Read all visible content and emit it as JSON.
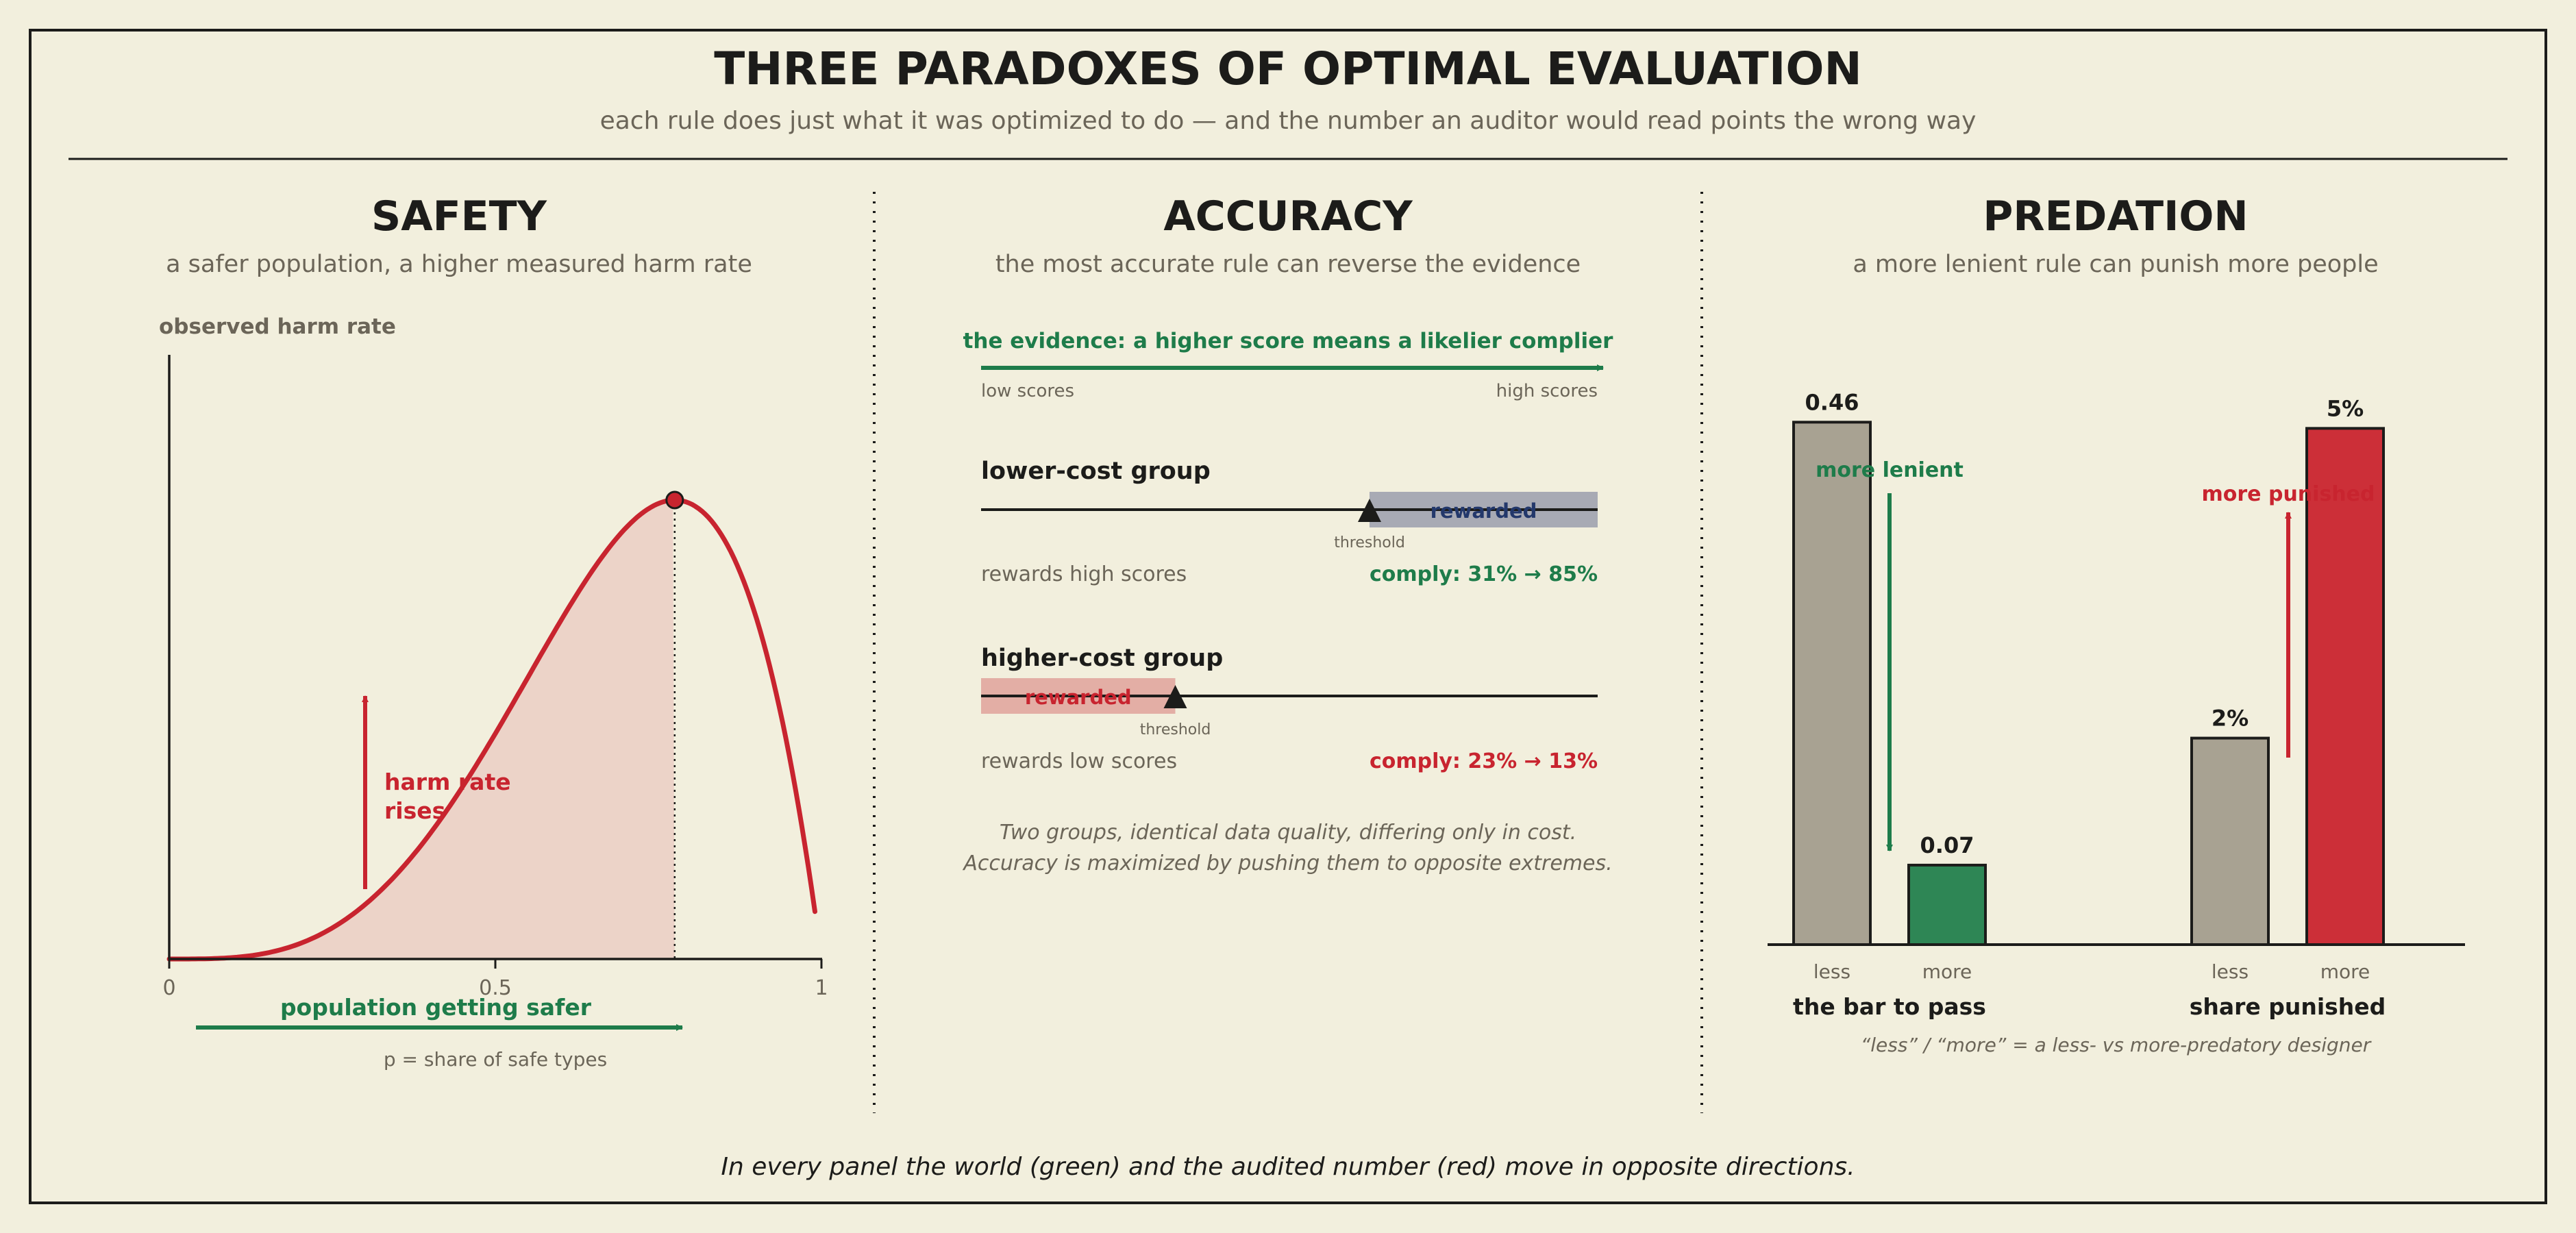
{
  "header": {
    "title": "THREE PARADOXES OF OPTIMAL EVALUATION",
    "subtitle": "each rule does just what it was optimized to do — and the number an auditor would read points the wrong way"
  },
  "colors": {
    "background": "#f2efdd",
    "ink": "#1c1c1a",
    "muted": "#6b6558",
    "green": "#1e7c4a",
    "red": "#c8242f",
    "navy": "#23386b",
    "gray_bar": "#a8a292"
  },
  "safety": {
    "title": "SAFETY",
    "subtitle": "a safer population, a higher measured harm rate",
    "y_label": "observed harm rate",
    "x_ticks": [
      "0",
      "0.5",
      "1"
    ],
    "rise_label_line1": "harm rate",
    "rise_label_line2": "rises",
    "safer_label": "population getting safer",
    "x_label": "p = share of safe types",
    "curve": {
      "x_min": 0,
      "x_max": 1,
      "peak_p": 0.775,
      "end_p": 0.99,
      "x_end_ratio": 0.18
    }
  },
  "accuracy": {
    "title": "ACCURACY",
    "subtitle": "the most accurate rule can reverse the evidence",
    "evidence_label": "the evidence: a higher score means a likelier complier",
    "low_scores": "low scores",
    "high_scores": "high scores",
    "lower_group": {
      "name": "lower-cost group",
      "band_label": "rewarded",
      "threshold_label": "threshold",
      "rule": "rewards high scores",
      "comply": "comply: 31% → 85%",
      "threshold_frac": 0.63
    },
    "higher_group": {
      "name": "higher-cost group",
      "band_label": "rewarded",
      "threshold_label": "threshold",
      "rule": "rewards low scores",
      "comply": "comply: 23% → 13%",
      "threshold_frac": 0.315
    },
    "note_line1": "Two groups, identical data quality, differing only in cost.",
    "note_line2": "Accuracy is maximized by pushing them to opposite extremes."
  },
  "predation": {
    "title": "PREDATION",
    "subtitle": "a more lenient rule can punish more people",
    "lenient_label": "more lenient",
    "punished_label": "more punished",
    "groups": [
      {
        "name": "the bar to pass",
        "ylim": [
          0,
          0.5
        ],
        "bars": [
          {
            "label": "less",
            "value": 0.46,
            "value_label": "0.46",
            "color": "#a8a292"
          },
          {
            "label": "more",
            "value": 0.07,
            "value_label": "0.07",
            "color": "#2e8655"
          }
        ]
      },
      {
        "name": "share punished",
        "ylim": [
          0,
          5.5
        ],
        "bars": [
          {
            "label": "less",
            "value": 2,
            "value_label": "2%",
            "color": "#a8a292"
          },
          {
            "label": "more",
            "value": 5,
            "value_label": "5%",
            "color": "#cc2f38"
          }
        ]
      }
    ],
    "footnote": "“less” / “more” = a less- vs more-predatory designer"
  },
  "footer": {
    "caption": "In every panel the world (green) and the audited number (red) move in opposite directions."
  }
}
